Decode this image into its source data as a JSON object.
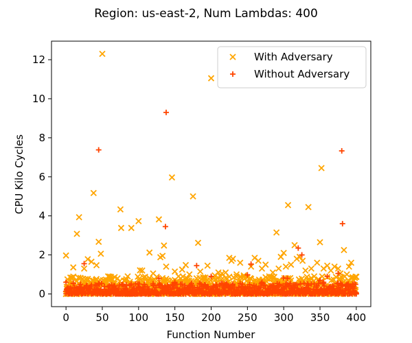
{
  "chart_data": {
    "type": "scatter",
    "title": "Region: us-east-2, Num Lambdas: 400",
    "xlabel": "Function Number",
    "ylabel": "CPU Kilo Cycles",
    "xlim": [
      -20,
      420
    ],
    "ylim": [
      -0.65,
      12.95
    ],
    "x_ticks": [
      0,
      50,
      100,
      150,
      200,
      250,
      300,
      350,
      400
    ],
    "y_ticks": [
      0,
      2,
      4,
      6,
      8,
      10,
      12
    ],
    "grid": false,
    "legend_position": "top-right",
    "series": [
      {
        "name": "With Adversary",
        "marker": "x",
        "color": "#ffa500",
        "points": [
          [
            0,
            1.97
          ],
          [
            5,
            0.52
          ],
          [
            10,
            1.36
          ],
          [
            15,
            3.08
          ],
          [
            18,
            3.93
          ],
          [
            25,
            1.3
          ],
          [
            27,
            0.76
          ],
          [
            30,
            1.78
          ],
          [
            35,
            1.65
          ],
          [
            38,
            5.17
          ],
          [
            42,
            1.47
          ],
          [
            45,
            2.67
          ],
          [
            48,
            2.06
          ],
          [
            50,
            12.3
          ],
          [
            55,
            0.62
          ],
          [
            60,
            0.89
          ],
          [
            65,
            0.52
          ],
          [
            70,
            0.45
          ],
          [
            75,
            4.33
          ],
          [
            76,
            3.38
          ],
          [
            80,
            0.68
          ],
          [
            85,
            0.9
          ],
          [
            88,
            0.62
          ],
          [
            90,
            3.38
          ],
          [
            95,
            0.45
          ],
          [
            100,
            3.73
          ],
          [
            102,
            1.21
          ],
          [
            105,
            1.2
          ],
          [
            110,
            0.75
          ],
          [
            115,
            2.12
          ],
          [
            120,
            1.05
          ],
          [
            125,
            0.88
          ],
          [
            128,
            3.82
          ],
          [
            130,
            1.88
          ],
          [
            133,
            1.95
          ],
          [
            135,
            2.48
          ],
          [
            138,
            1.4
          ],
          [
            140,
            0.7
          ],
          [
            146,
            5.97
          ],
          [
            150,
            1.15
          ],
          [
            155,
            0.9
          ],
          [
            160,
            1.25
          ],
          [
            165,
            1.48
          ],
          [
            170,
            1.0
          ],
          [
            175,
            5.0
          ],
          [
            180,
            0.8
          ],
          [
            182,
            2.62
          ],
          [
            185,
            1.15
          ],
          [
            190,
            0.7
          ],
          [
            195,
            1.45
          ],
          [
            200,
            11.05
          ],
          [
            205,
            0.95
          ],
          [
            210,
            1.1
          ],
          [
            215,
            1.05
          ],
          [
            220,
            1.1
          ],
          [
            225,
            1.85
          ],
          [
            228,
            1.7
          ],
          [
            230,
            1.8
          ],
          [
            235,
            1.0
          ],
          [
            240,
            1.6
          ],
          [
            245,
            0.95
          ],
          [
            250,
            0.85
          ],
          [
            255,
            1.4
          ],
          [
            260,
            1.85
          ],
          [
            265,
            1.7
          ],
          [
            270,
            1.3
          ],
          [
            275,
            1.5
          ],
          [
            280,
            0.9
          ],
          [
            285,
            1.1
          ],
          [
            290,
            3.15
          ],
          [
            293,
            1.3
          ],
          [
            296,
            1.9
          ],
          [
            300,
            2.1
          ],
          [
            303,
            1.4
          ],
          [
            306,
            4.55
          ],
          [
            310,
            1.5
          ],
          [
            315,
            2.5
          ],
          [
            318,
            1.8
          ],
          [
            322,
            1.9
          ],
          [
            326,
            1.7
          ],
          [
            330,
            1.2
          ],
          [
            334,
            4.45
          ],
          [
            338,
            1.3
          ],
          [
            342,
            0.9
          ],
          [
            346,
            1.6
          ],
          [
            350,
            2.65
          ],
          [
            352,
            6.45
          ],
          [
            355,
            1.3
          ],
          [
            360,
            1.45
          ],
          [
            365,
            1.2
          ],
          [
            370,
            1.4
          ],
          [
            375,
            1.3
          ],
          [
            378,
            1.05
          ],
          [
            380,
            0.85
          ],
          [
            383,
            2.25
          ],
          [
            387,
            1.0
          ],
          [
            390,
            1.4
          ],
          [
            393,
            1.6
          ],
          [
            396,
            0.7
          ],
          [
            399,
            0.2
          ]
        ]
      },
      {
        "name": "Without Adversary",
        "marker": "+",
        "color": "#ff4500",
        "points": [
          [
            0,
            0.6
          ],
          [
            10,
            0.55
          ],
          [
            25,
            1.55
          ],
          [
            45,
            7.38
          ],
          [
            80,
            0.4
          ],
          [
            90,
            0.5
          ],
          [
            120,
            0.45
          ],
          [
            128,
            0.8
          ],
          [
            138,
            9.3
          ],
          [
            137,
            3.45
          ],
          [
            150,
            0.6
          ],
          [
            160,
            0.5
          ],
          [
            180,
            1.45
          ],
          [
            200,
            0.9
          ],
          [
            230,
            0.5
          ],
          [
            250,
            0.98
          ],
          [
            255,
            1.53
          ],
          [
            270,
            0.6
          ],
          [
            300,
            0.82
          ],
          [
            305,
            0.8
          ],
          [
            320,
            2.35
          ],
          [
            325,
            2.0
          ],
          [
            350,
            0.7
          ],
          [
            355,
            0.6
          ],
          [
            360,
            0.9
          ],
          [
            375,
            1.05
          ],
          [
            380,
            7.33
          ],
          [
            381,
            3.6
          ],
          [
            385,
            0.4
          ],
          [
            395,
            0.5
          ]
        ]
      }
    ]
  }
}
